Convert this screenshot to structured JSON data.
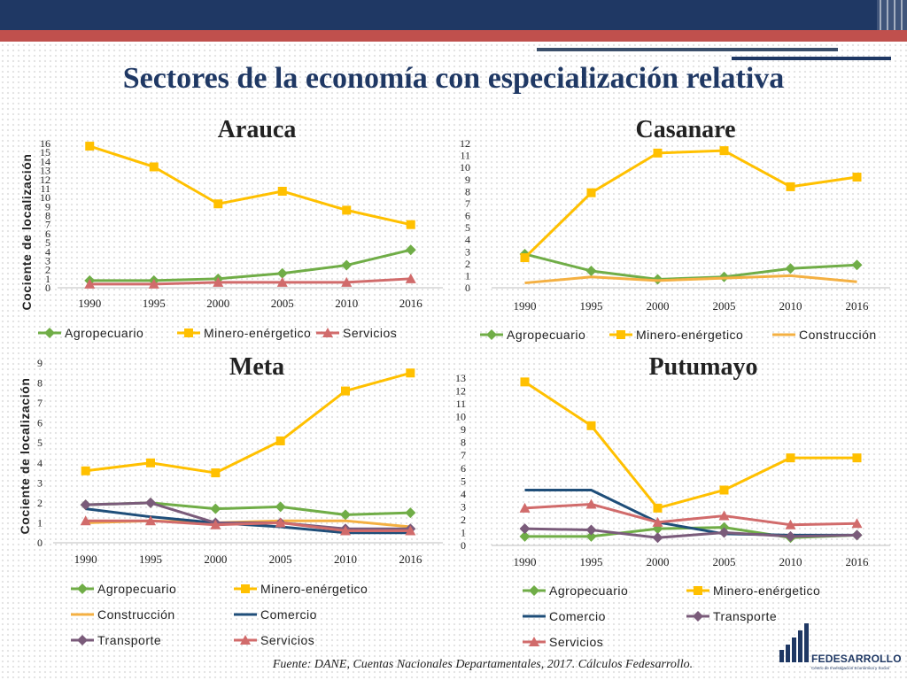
{
  "page": {
    "title": "Sectores de la economía con especialización relativa",
    "source": "Fuente: DANE, Cuentas Nacionales Departamentales, 2017. Cálculos Fedesarrollo."
  },
  "logo": {
    "name": "FEDESARROLLO",
    "subtitle": "Centro de Investigación Económica y Social"
  },
  "colors": {
    "header_blue": "#1f3864",
    "header_red": "#c0504d",
    "Agropecuario": "#70ad47",
    "Minero-enérgetico": "#ffc000",
    "Servicios": "#d16b6b",
    "Construcción": "#f4b042",
    "Comercio": "#1f4e79",
    "Transporte": "#7a5b7a"
  },
  "chart_data": [
    {
      "type": "line",
      "title": "Arauca",
      "ylabel": "Cociente de localización",
      "x": [
        "1990",
        "1995",
        "2000",
        "2005",
        "2010",
        "2016"
      ],
      "yticks": [
        0,
        1,
        2,
        3,
        4,
        5,
        6,
        7,
        8,
        9,
        10,
        11,
        12,
        13,
        14,
        15,
        16
      ],
      "ylim": [
        0,
        16
      ],
      "grid": false,
      "legend_position": "bottom",
      "series": [
        {
          "name": "Agropecuario",
          "marker": "diamond",
          "values": [
            0.8,
            0.8,
            1.0,
            1.6,
            2.5,
            4.2
          ]
        },
        {
          "name": "Minero-enérgetico",
          "marker": "square",
          "values": [
            15.7,
            13.4,
            9.3,
            10.7,
            8.6,
            7.0
          ]
        },
        {
          "name": "Servicios",
          "marker": "triangle",
          "values": [
            0.4,
            0.4,
            0.6,
            0.6,
            0.6,
            1.0
          ]
        }
      ]
    },
    {
      "type": "line",
      "title": "Casanare",
      "ylabel": "",
      "x": [
        "1990",
        "1995",
        "2000",
        "2005",
        "2010",
        "2016"
      ],
      "yticks": [
        0,
        1,
        2,
        3,
        4,
        5,
        6,
        7,
        8,
        9,
        10,
        11,
        12
      ],
      "ylim": [
        0,
        12
      ],
      "grid": false,
      "legend_position": "bottom",
      "series": [
        {
          "name": "Agropecuario",
          "marker": "diamond",
          "values": [
            2.8,
            1.4,
            0.7,
            0.9,
            1.6,
            1.9
          ]
        },
        {
          "name": "Minero-enérgetico",
          "marker": "square",
          "values": [
            2.5,
            7.9,
            11.2,
            11.4,
            8.4,
            9.2
          ]
        },
        {
          "name": "Construcción",
          "marker": "none",
          "values": [
            0.4,
            0.9,
            0.6,
            0.8,
            1.0,
            0.5
          ]
        }
      ]
    },
    {
      "type": "line",
      "title": "Meta",
      "ylabel": "Cociente de localización",
      "x": [
        "1990",
        "1995",
        "2000",
        "2005",
        "2010",
        "2016"
      ],
      "yticks": [
        0,
        1,
        2,
        3,
        4,
        5,
        6,
        7,
        8,
        9
      ],
      "ylim": [
        0,
        9
      ],
      "grid": false,
      "legend_position": "bottom",
      "series": [
        {
          "name": "Agropecuario",
          "marker": "diamond",
          "values": [
            1.9,
            2.0,
            1.7,
            1.8,
            1.4,
            1.5
          ]
        },
        {
          "name": "Minero-enérgetico",
          "marker": "square",
          "values": [
            3.6,
            4.0,
            3.5,
            5.1,
            7.6,
            8.5
          ]
        },
        {
          "name": "Construcción",
          "marker": "none",
          "values": [
            1.0,
            1.1,
            1.0,
            1.1,
            1.1,
            0.8
          ]
        },
        {
          "name": "Comercio",
          "marker": "none",
          "values": [
            1.7,
            1.3,
            1.0,
            0.8,
            0.5,
            0.5
          ]
        },
        {
          "name": "Transporte",
          "marker": "diamond",
          "values": [
            1.9,
            2.0,
            1.0,
            1.0,
            0.7,
            0.7
          ]
        },
        {
          "name": "Servicios",
          "marker": "triangle",
          "values": [
            1.1,
            1.1,
            0.9,
            1.0,
            0.6,
            0.6
          ]
        }
      ]
    },
    {
      "type": "line",
      "title": "Putumayo",
      "ylabel": "",
      "x": [
        "1990",
        "1995",
        "2000",
        "2005",
        "2010",
        "2016"
      ],
      "yticks": [
        0,
        1,
        2,
        3,
        4,
        5,
        6,
        7,
        8,
        9,
        10,
        11,
        12,
        13
      ],
      "ylim": [
        0,
        13
      ],
      "grid": false,
      "legend_position": "bottom",
      "series": [
        {
          "name": "Agropecuario",
          "marker": "diamond",
          "values": [
            0.7,
            0.7,
            1.3,
            1.4,
            0.6,
            0.8
          ]
        },
        {
          "name": "Minero-enérgetico",
          "marker": "square",
          "values": [
            12.7,
            9.3,
            2.9,
            4.3,
            6.8,
            6.8
          ]
        },
        {
          "name": "Comercio",
          "marker": "none",
          "values": [
            4.3,
            4.3,
            1.8,
            0.9,
            0.8,
            0.8
          ]
        },
        {
          "name": "Transporte",
          "marker": "diamond",
          "values": [
            1.3,
            1.2,
            0.6,
            1.0,
            0.7,
            0.8
          ]
        },
        {
          "name": "Servicios",
          "marker": "triangle",
          "values": [
            2.9,
            3.2,
            1.8,
            2.3,
            1.6,
            1.7
          ]
        }
      ]
    }
  ]
}
